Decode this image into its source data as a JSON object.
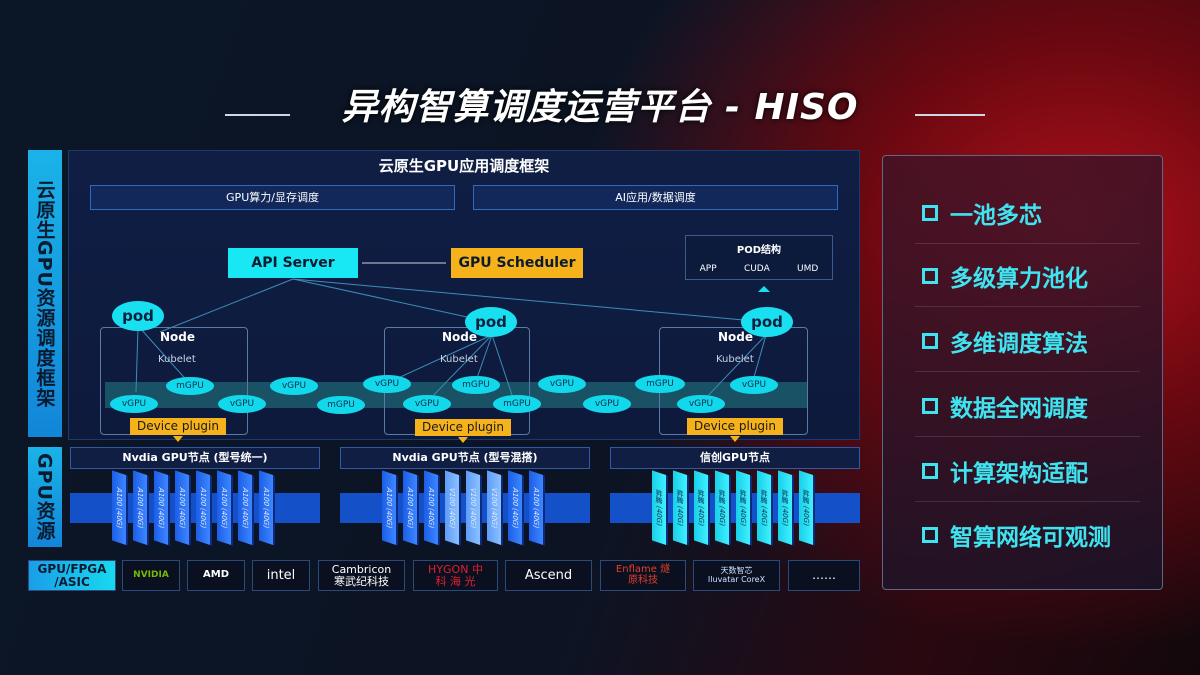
{
  "title": "异构智算调度运营平台 - HISO",
  "left_labels": {
    "framework": "云原生GPU资源调度框架",
    "resources": "GPU资源"
  },
  "framework": {
    "header": "云原生GPU应用调度框架",
    "bars": [
      "GPU算力/显存调度",
      "AI应用/数据调度"
    ],
    "api_server": "API Server",
    "gpu_scheduler": "GPU Scheduler",
    "pod_struct": {
      "title": "POD结构",
      "items": [
        "APP",
        "CUDA",
        "UMD"
      ]
    },
    "pod": "pod",
    "node": "Node",
    "kubelet": "Kubelet",
    "vgpu": "vGPU",
    "mgpu": "mGPU",
    "device_plugin": "Device plugin"
  },
  "gpu_nodes": [
    {
      "title": "Nvdia GPU节点 (型号统一)",
      "cards": [
        "A100 (40G)",
        "A100 (40G)",
        "A100 (40G)",
        "A100 (40G)",
        "A100 (40G)",
        "A100 (40G)",
        "A100 (40G)",
        "A100 (40G)"
      ]
    },
    {
      "title": "Nvdia GPU节点 (型号混搭)",
      "cards": [
        "A100 (40G)",
        "A100 (40G)",
        "A100 (40G)",
        "V100 (40G)",
        "V100 (40G)",
        "V100 (40G)",
        "A100 (40G)",
        "A100 (40G)"
      ]
    },
    {
      "title": "信创GPU节点",
      "cards": [
        "昇腾 (40G)",
        "昇腾 (40G)",
        "昇腾 (40G)",
        "昇腾 (40G)",
        "昇腾 (40G)",
        "昇腾 (40G)",
        "昇腾 (40G)",
        "昇腾 (40G)"
      ]
    }
  ],
  "vendors": {
    "label": "GPU/FPGA /ASIC",
    "items": [
      "NVIDIA",
      "AMD",
      "intel",
      "Cambricon 寒武纪科技",
      "HYGON 中 科 海 光",
      "Ascend",
      "Enflame 燧原科技",
      "天数智芯 Iluvatar CoreX",
      "……"
    ]
  },
  "features": [
    "一池多芯",
    "多级算力池化",
    "多维调度算法",
    "数据全网调度",
    "计算架构适配",
    "智算网络可观测"
  ],
  "colors": {
    "cyan": "#18e0f0",
    "orange": "#f5b21a",
    "blue": "#1450c8",
    "red": "#b0101c"
  }
}
